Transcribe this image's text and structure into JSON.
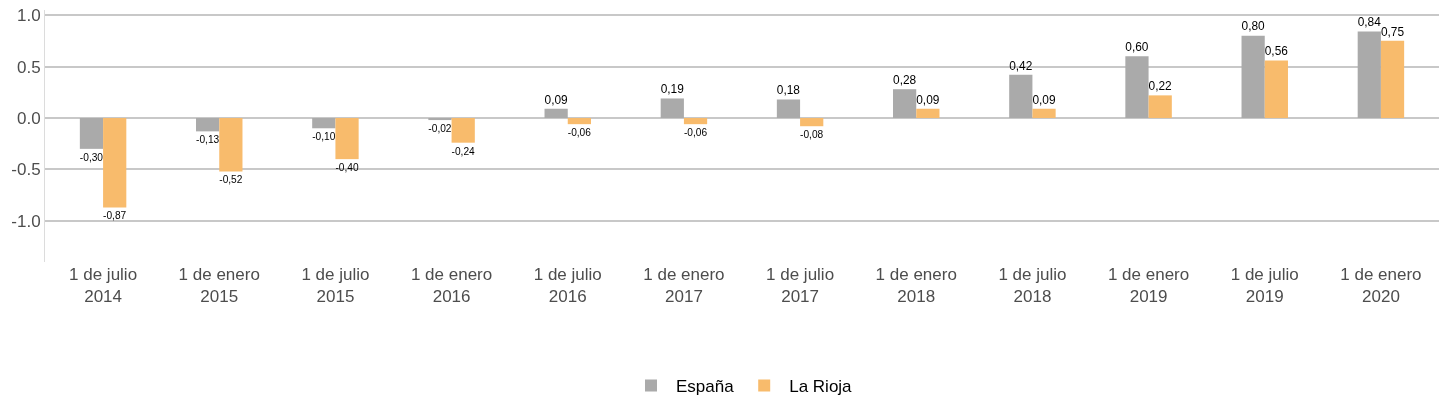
{
  "chart_data": {
    "type": "bar",
    "categories": [
      "1 de julio\n2014",
      "1 de enero\n2015",
      "1 de julio\n2015",
      "1 de enero\n2016",
      "1 de julio\n2016",
      "1 de enero\n2017",
      "1 de julio\n2017",
      "1 de enero\n2018",
      "1 de julio\n2018",
      "1 de enero\n2019",
      "1 de julio\n2019",
      "1 de enero\n2020"
    ],
    "series": [
      {
        "name": "España",
        "color": "#aaaaaa",
        "values": [
          -0.3,
          -0.13,
          -0.1,
          -0.02,
          0.09,
          0.19,
          0.18,
          0.28,
          0.42,
          0.6,
          0.8,
          0.84
        ],
        "value_labels": [
          "-0,30",
          "-0,13",
          "-0,10",
          "-0,02",
          "0,09",
          "0,19",
          "0,18",
          "0,28",
          "0,42",
          "0,60",
          "0,80",
          "0,84"
        ]
      },
      {
        "name": "La Rioja",
        "color": "#f8bb6c",
        "values": [
          -0.87,
          -0.52,
          -0.4,
          -0.24,
          -0.06,
          -0.06,
          -0.08,
          0.09,
          0.09,
          0.22,
          0.56,
          0.75
        ],
        "value_labels": [
          "-0,87",
          "-0,52",
          "-0,40",
          "-0,24",
          "-0,06",
          "-0,06",
          "-0,08",
          "0,09",
          "0,09",
          "0,22",
          "0,56",
          "0,75"
        ]
      }
    ],
    "ylim": [
      -1.4,
      1.05
    ],
    "yticks": [
      {
        "value": -1,
        "label": "-1.0"
      },
      {
        "value": -0.5,
        "label": "-0.5"
      },
      {
        "value": 0,
        "label": "0.0"
      },
      {
        "value": 0.5,
        "label": "0.5"
      },
      {
        "value": 1,
        "label": "1.0"
      }
    ],
    "grid": "y",
    "legend": "bottom"
  }
}
